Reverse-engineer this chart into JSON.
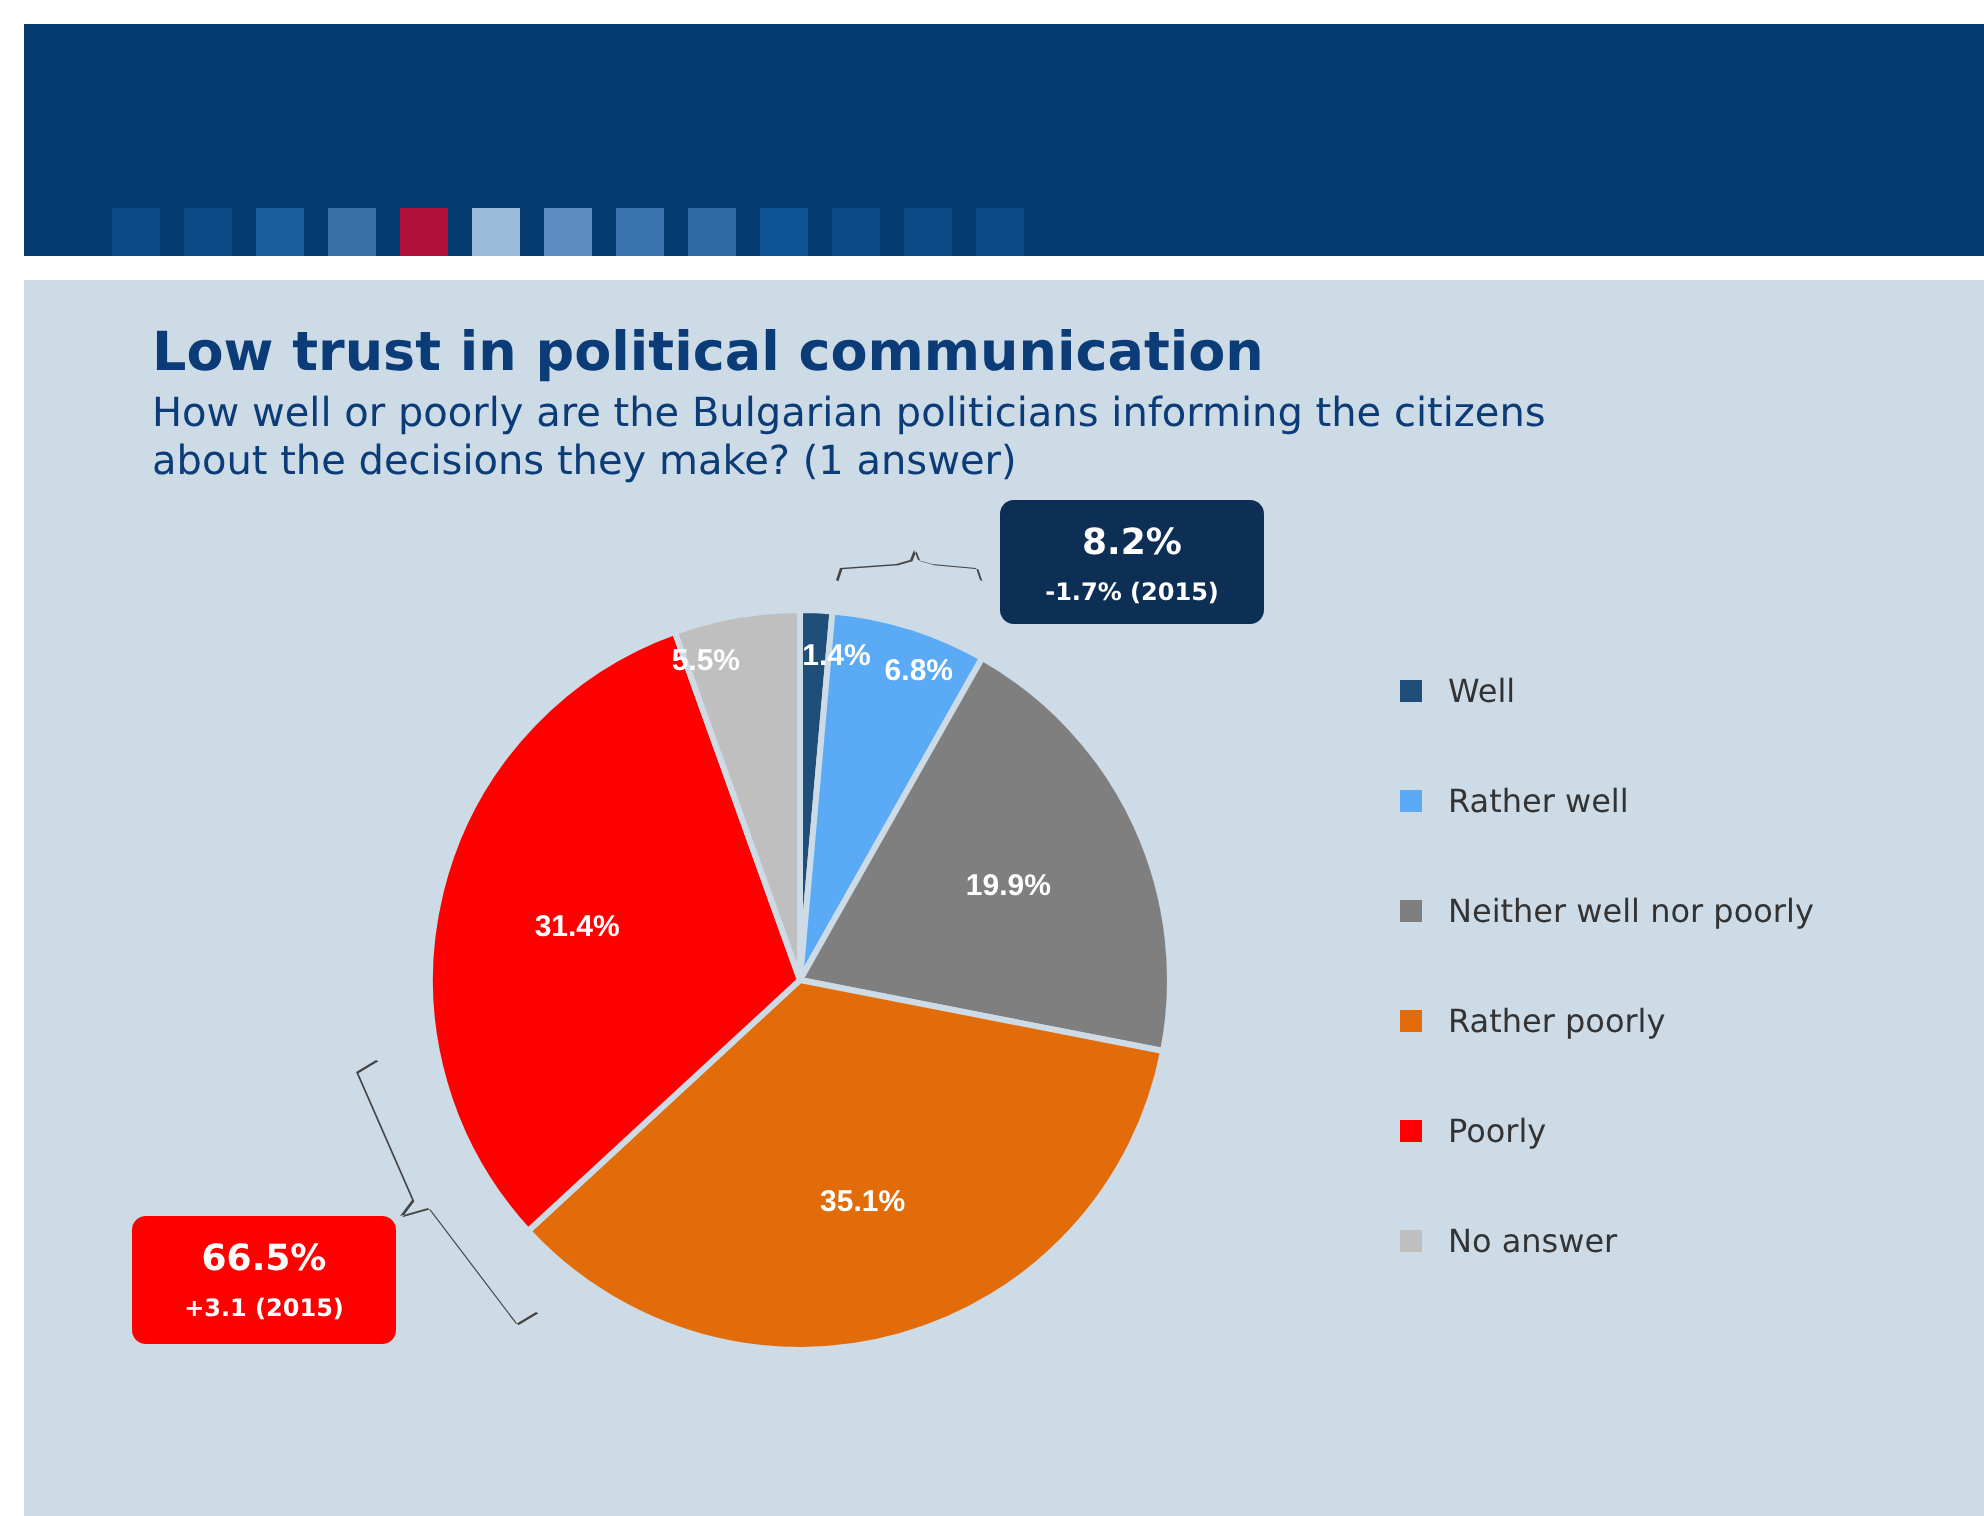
{
  "chart_data": {
    "type": "pie",
    "title": "Low trust in political communication",
    "subtitle": "How well or poorly are the Bulgarian politicians informing the citizens about the decisions they make? (1 answer)",
    "categories": [
      "Well",
      "Rather well",
      "Neither well nor poorly",
      "Rather poorly",
      "Poorly",
      "No answer"
    ],
    "values": [
      1.4,
      6.8,
      19.9,
      35.1,
      31.4,
      5.5
    ],
    "colors": [
      "#1f4e79",
      "#5aaaf5",
      "#7f7f7f",
      "#e36c0a",
      "#ff0000",
      "#bfbfbf"
    ],
    "value_labels": [
      "1.4%",
      "6.8%",
      "19.9%",
      "35.1%",
      "31.4%",
      "5.5%"
    ],
    "legend": "right",
    "annotations": [
      "8.2%",
      "-1.7% (2015)",
      "66.5%",
      "+3.1 (2015)"
    ]
  }
}
